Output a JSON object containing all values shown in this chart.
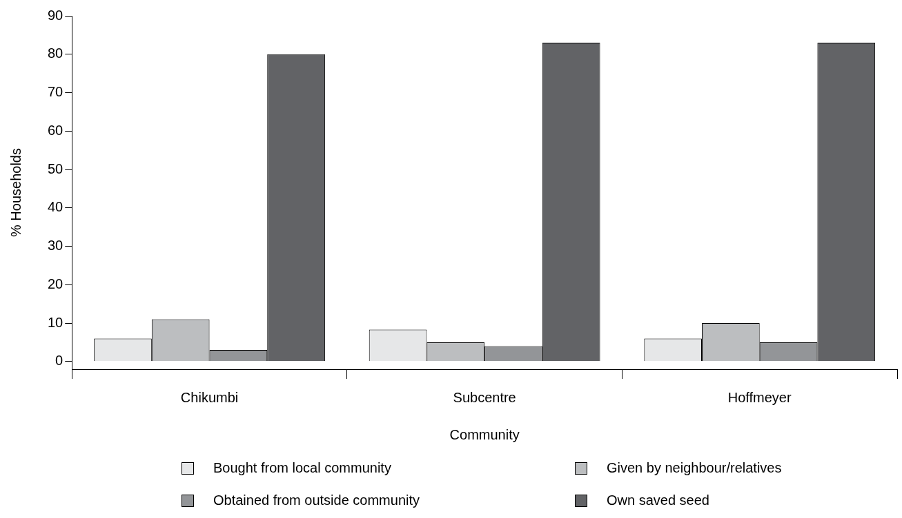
{
  "chart_data": {
    "type": "bar",
    "xlabel": "Community",
    "ylabel": "% Households",
    "categories": [
      "Chikumbi",
      "Subcentre",
      "Hoffmeyer"
    ],
    "series": [
      {
        "name": "Bought from local community",
        "color": "#e6e7e8",
        "values": [
          6,
          8.3,
          6
        ]
      },
      {
        "name": "Given by neighbour/relatives",
        "color": "#bcbec0",
        "values": [
          11,
          5,
          10
        ]
      },
      {
        "name": "Obtained from outside community",
        "color": "#939598",
        "values": [
          3,
          4,
          5
        ]
      },
      {
        "name": "Own saved seed",
        "color": "#626366",
        "values": [
          80,
          83,
          83
        ]
      }
    ],
    "ylim": [
      -2,
      90
    ],
    "yticks": [
      0,
      10,
      20,
      30,
      40,
      50,
      60,
      70,
      80,
      90
    ],
    "grid": false,
    "legend": "bottom"
  }
}
